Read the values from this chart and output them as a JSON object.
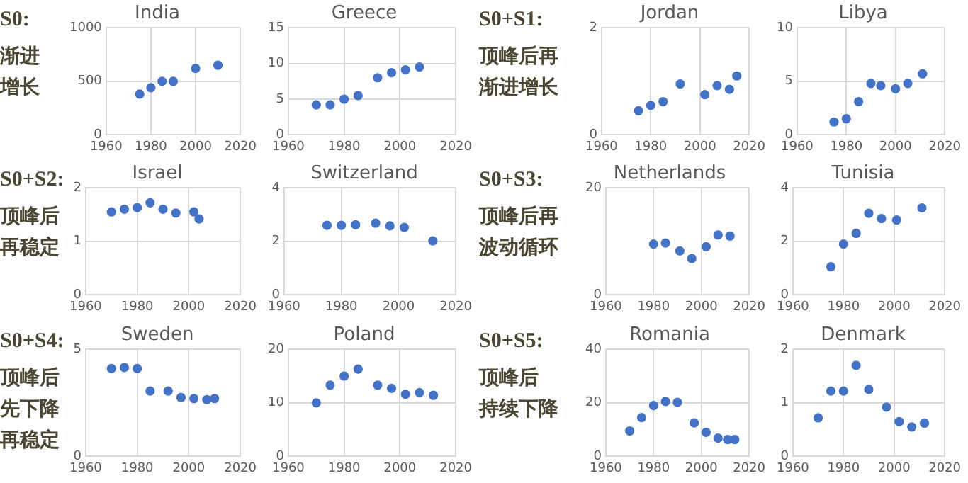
{
  "chart_data": [
    {
      "type": "other",
      "title": "S0:",
      "annotations": [
        "渐进",
        "增长"
      ]
    },
    {
      "type": "scatter",
      "title": "India",
      "xlim": [
        1960,
        2020
      ],
      "xticks": [
        1960,
        1980,
        2000,
        2020
      ],
      "ylim": [
        0,
        1000
      ],
      "yticks": [
        0,
        500,
        1000
      ],
      "grid": true,
      "marker": "circle",
      "legend": false,
      "series": [
        {
          "color": "#4472c4",
          "x": [
            1975,
            1980,
            1985,
            1990,
            2000,
            2010
          ],
          "values": [
            380,
            440,
            500,
            500,
            620,
            650
          ]
        }
      ]
    },
    {
      "type": "scatter",
      "title": "Greece",
      "xlim": [
        1960,
        2020
      ],
      "xticks": [
        1960,
        1980,
        2000,
        2020
      ],
      "ylim": [
        0,
        15
      ],
      "yticks": [
        0,
        5,
        10,
        15
      ],
      "grid": true,
      "marker": "circle",
      "legend": false,
      "series": [
        {
          "color": "#4472c4",
          "x": [
            1970,
            1975,
            1980,
            1985,
            1992,
            1997,
            2002,
            2007
          ],
          "values": [
            4.2,
            4.2,
            5,
            5.5,
            8,
            8.7,
            9.1,
            9.5
          ]
        }
      ]
    },
    {
      "type": "other",
      "title": "S0+S1:",
      "annotations": [
        "顶峰后再",
        "渐进增长"
      ]
    },
    {
      "type": "scatter",
      "title": "Jordan",
      "xlim": [
        1960,
        2020
      ],
      "xticks": [
        1960,
        1980,
        2000,
        2020
      ],
      "ylim": [
        0,
        2
      ],
      "yticks": [
        0,
        2
      ],
      "grid": true,
      "marker": "circle",
      "legend": false,
      "series": [
        {
          "color": "#4472c4",
          "x": [
            1975,
            1980,
            1985,
            1992,
            2002,
            2007,
            2012,
            2015
          ],
          "values": [
            0.45,
            0.55,
            0.62,
            0.95,
            0.75,
            0.92,
            0.85,
            1.1
          ]
        }
      ]
    },
    {
      "type": "scatter",
      "title": "Libya",
      "xlim": [
        1960,
        2020
      ],
      "xticks": [
        1960,
        1980,
        2000,
        2020
      ],
      "ylim": [
        0,
        10
      ],
      "yticks": [
        0,
        5,
        10
      ],
      "grid": true,
      "marker": "circle",
      "legend": false,
      "series": [
        {
          "color": "#4472c4",
          "x": [
            1975,
            1980,
            1985,
            1990,
            1994,
            2000,
            2005,
            2011
          ],
          "values": [
            1.2,
            1.5,
            3.1,
            4.8,
            4.6,
            4.3,
            4.8,
            5.7
          ]
        }
      ]
    },
    {
      "type": "other",
      "title": "S0+S2:",
      "annotations": [
        "顶峰后",
        "再稳定"
      ]
    },
    {
      "type": "scatter",
      "title": "Israel",
      "xlim": [
        1960,
        2020
      ],
      "xticks": [
        1960,
        1980,
        2000,
        2020
      ],
      "ylim": [
        0,
        2
      ],
      "yticks": [
        0,
        1,
        2
      ],
      "grid": true,
      "marker": "circle",
      "legend": false,
      "series": [
        {
          "color": "#4472c4",
          "x": [
            1970,
            1975,
            1980,
            1985,
            1990,
            1995,
            2002,
            2004
          ],
          "values": [
            1.55,
            1.6,
            1.63,
            1.72,
            1.6,
            1.53,
            1.55,
            1.42
          ]
        }
      ]
    },
    {
      "type": "scatter",
      "title": "Switzerland",
      "xlim": [
        1960,
        2020
      ],
      "xticks": [
        1960,
        1980,
        2000,
        2020
      ],
      "ylim": [
        0,
        4
      ],
      "yticks": [
        0,
        2,
        4
      ],
      "grid": true,
      "marker": "circle",
      "legend": false,
      "series": [
        {
          "color": "#4472c4",
          "x": [
            1975,
            1980,
            1985,
            1992,
            1997,
            2002,
            2012
          ],
          "values": [
            2.6,
            2.6,
            2.62,
            2.68,
            2.58,
            2.52,
            2.02
          ]
        }
      ]
    },
    {
      "type": "other",
      "title": "S0+S3:",
      "annotations": [
        "顶峰后再",
        "波动循环"
      ]
    },
    {
      "type": "scatter",
      "title": "Netherlands",
      "xlim": [
        1960,
        2020
      ],
      "xticks": [
        1960,
        1980,
        2000,
        2020
      ],
      "ylim": [
        0,
        20
      ],
      "yticks": [
        0,
        20
      ],
      "grid": true,
      "marker": "circle",
      "legend": false,
      "series": [
        {
          "color": "#4472c4",
          "x": [
            1980,
            1985,
            1991,
            1996,
            2002,
            2007,
            2012
          ],
          "values": [
            9.5,
            9.7,
            8.2,
            6.8,
            9,
            11.2,
            11
          ]
        }
      ]
    },
    {
      "type": "scatter",
      "title": "Tunisia",
      "xlim": [
        1960,
        2020
      ],
      "xticks": [
        1960,
        1980,
        2000,
        2020
      ],
      "ylim": [
        0,
        4
      ],
      "yticks": [
        0,
        2,
        4
      ],
      "grid": true,
      "marker": "circle",
      "legend": false,
      "series": [
        {
          "color": "#4472c4",
          "x": [
            1975,
            1980,
            1985,
            1990,
            1995,
            2001,
            2011
          ],
          "values": [
            1.05,
            1.9,
            2.3,
            3.05,
            2.85,
            2.8,
            3.25
          ]
        }
      ]
    },
    {
      "type": "other",
      "title": "S0+S4:",
      "annotations": [
        "顶峰后",
        "先下降",
        "再稳定"
      ]
    },
    {
      "type": "scatter",
      "title": "Sweden",
      "xlim": [
        1960,
        2020
      ],
      "xticks": [
        1960,
        1980,
        2000,
        2020
      ],
      "ylim": [
        0,
        5
      ],
      "yticks": [
        0,
        5
      ],
      "grid": true,
      "marker": "circle",
      "legend": false,
      "series": [
        {
          "color": "#4472c4",
          "x": [
            1970,
            1975,
            1980,
            1985,
            1992,
            1997,
            2002,
            2007,
            2010
          ],
          "values": [
            4.1,
            4.15,
            4.1,
            3.05,
            3.05,
            2.75,
            2.7,
            2.65,
            2.7
          ]
        }
      ]
    },
    {
      "type": "scatter",
      "title": "Poland",
      "xlim": [
        1960,
        2020
      ],
      "xticks": [
        1960,
        1980,
        2000,
        2020
      ],
      "ylim": [
        0,
        20
      ],
      "yticks": [
        0,
        10,
        20
      ],
      "grid": true,
      "marker": "circle",
      "legend": false,
      "series": [
        {
          "color": "#4472c4",
          "x": [
            1970,
            1975,
            1980,
            1985,
            1992,
            1997,
            2002,
            2007,
            2012
          ],
          "values": [
            10,
            13.3,
            15,
            16.3,
            13.3,
            12.7,
            11.6,
            11.9,
            11.4
          ]
        }
      ]
    },
    {
      "type": "other",
      "title": "S0+S5:",
      "annotations": [
        "顶峰后",
        "持续下降"
      ]
    },
    {
      "type": "scatter",
      "title": "Romania",
      "xlim": [
        1960,
        2020
      ],
      "xticks": [
        1960,
        1980,
        2000,
        2020
      ],
      "ylim": [
        0,
        40
      ],
      "yticks": [
        0,
        20,
        40
      ],
      "grid": true,
      "marker": "circle",
      "legend": false,
      "series": [
        {
          "color": "#4472c4",
          "x": [
            1970,
            1975,
            1980,
            1985,
            1990,
            1997,
            2002,
            2007,
            2011,
            2014
          ],
          "values": [
            9.5,
            14.5,
            19,
            20.5,
            20.2,
            12.5,
            9,
            6.8,
            6.3,
            6.3
          ]
        }
      ]
    },
    {
      "type": "scatter",
      "title": "Denmark",
      "xlim": [
        1960,
        2020
      ],
      "xticks": [
        1960,
        1980,
        2000,
        2020
      ],
      "ylim": [
        0,
        2
      ],
      "yticks": [
        0,
        1,
        2
      ],
      "grid": true,
      "marker": "circle",
      "legend": false,
      "series": [
        {
          "color": "#4472c4",
          "x": [
            1970,
            1975,
            1980,
            1985,
            1990,
            1997,
            2002,
            2007,
            2012
          ],
          "values": [
            0.72,
            1.22,
            1.22,
            1.7,
            1.25,
            0.92,
            0.65,
            0.55,
            0.62
          ]
        }
      ]
    }
  ]
}
